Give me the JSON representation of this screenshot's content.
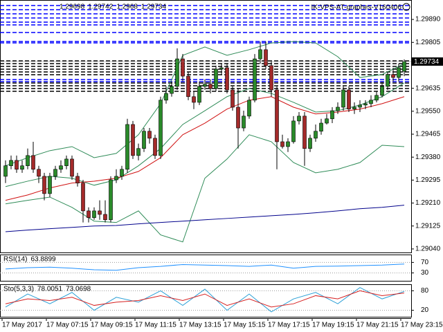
{
  "chart_data": [
    {
      "type": "candlestick",
      "title": "IK-VPS-AT-graphes-V160406",
      "up_color": "#2a8a2a",
      "down_color": "#a32a2a",
      "last_price_color": "#000000",
      "open": [
        1.29309,
        1.29348,
        1.29368,
        1.29335,
        1.29348,
        1.29386,
        1.29335,
        1.29309,
        1.29245,
        1.29309,
        1.29335,
        1.29348,
        1.29373,
        1.29309,
        1.29284,
        1.29181,
        1.29156,
        1.29181,
        1.29168,
        1.29148,
        1.29296,
        1.29309,
        1.29335,
        1.29501,
        1.29386,
        1.29412,
        1.29476,
        1.2945,
        1.29386,
        1.29591,
        1.29616,
        1.29642,
        1.29744,
        1.2968,
        1.29604,
        1.29583,
        1.29642,
        1.2965,
        1.29634,
        1.29706,
        1.29711,
        1.29629,
        1.29565,
        1.29488,
        1.29532,
        1.29591,
        1.29744,
        1.29778,
        1.29719,
        1.29629,
        1.29437,
        1.29419,
        1.29437,
        1.29514,
        1.29532,
        1.29412,
        1.2945,
        1.29476,
        1.29506,
        1.29522,
        1.29552,
        1.29565,
        1.29629,
        1.29558,
        1.29565,
        1.29573,
        1.29578,
        1.29591,
        1.29609,
        1.29642,
        1.29686,
        1.29675,
        1.29698
      ],
      "high": [
        1.29368,
        1.29386,
        1.29386,
        1.29368,
        1.29412,
        1.29437,
        1.29348,
        1.29322,
        1.29322,
        1.29348,
        1.29368,
        1.29386,
        1.29386,
        1.29322,
        1.29296,
        1.29194,
        1.29194,
        1.2922,
        1.2922,
        1.29309,
        1.29335,
        1.29348,
        1.29522,
        1.29514,
        1.2943,
        1.29488,
        1.29488,
        1.29463,
        1.29604,
        1.29642,
        1.2966,
        1.29783,
        1.29762,
        1.29696,
        1.29624,
        1.2966,
        1.29668,
        1.29668,
        1.29719,
        1.29726,
        1.29726,
        1.29642,
        1.29634,
        1.29552,
        1.29604,
        1.29762,
        1.29808,
        1.29808,
        1.29734,
        1.29642,
        1.29463,
        1.2945,
        1.29532,
        1.29547,
        1.29547,
        1.29463,
        1.29501,
        1.29522,
        1.2954,
        1.29565,
        1.29583,
        1.29642,
        1.29642,
        1.29583,
        1.29591,
        1.29591,
        1.29609,
        1.29624,
        1.2966,
        1.29696,
        1.29711,
        1.29726,
        1.29742
      ],
      "low": [
        1.29284,
        1.29335,
        1.29322,
        1.29322,
        1.29335,
        1.29322,
        1.29284,
        1.2922,
        1.29232,
        1.29296,
        1.29322,
        1.29335,
        1.29296,
        1.29271,
        1.29138,
        1.29138,
        1.29148,
        1.29148,
        1.29138,
        1.29138,
        1.29284,
        1.29296,
        1.29322,
        1.29373,
        1.29368,
        1.29399,
        1.2943,
        1.29373,
        1.29373,
        1.29578,
        1.29604,
        1.29629,
        1.2966,
        1.29591,
        1.29558,
        1.29573,
        1.29629,
        1.29616,
        1.29624,
        1.29686,
        1.29616,
        1.29552,
        1.29412,
        1.29476,
        1.29522,
        1.29583,
        1.29726,
        1.29706,
        1.29604,
        1.29335,
        1.29412,
        1.29399,
        1.2943,
        1.29501,
        1.29348,
        1.29399,
        1.29437,
        1.29463,
        1.29501,
        1.29506,
        1.2954,
        1.29552,
        1.29547,
        1.2954,
        1.29547,
        1.29558,
        1.29565,
        1.29583,
        1.29601,
        1.29629,
        1.2966,
        1.2966,
        1.2968
      ],
      "close": [
        1.29348,
        1.29368,
        1.29335,
        1.29348,
        1.29386,
        1.29335,
        1.29309,
        1.29245,
        1.29309,
        1.29335,
        1.29348,
        1.29373,
        1.29309,
        1.29284,
        1.29181,
        1.29156,
        1.29181,
        1.29168,
        1.29148,
        1.29296,
        1.29309,
        1.29335,
        1.29501,
        1.29386,
        1.29412,
        1.29476,
        1.2945,
        1.29386,
        1.29591,
        1.29616,
        1.29642,
        1.29744,
        1.2968,
        1.29604,
        1.29583,
        1.29642,
        1.2965,
        1.29634,
        1.29706,
        1.29711,
        1.29629,
        1.29565,
        1.29488,
        1.29532,
        1.29591,
        1.29744,
        1.29778,
        1.29719,
        1.29629,
        1.29437,
        1.29419,
        1.29437,
        1.29514,
        1.29532,
        1.29412,
        1.2945,
        1.29476,
        1.29506,
        1.29522,
        1.29552,
        1.29565,
        1.29629,
        1.29558,
        1.29565,
        1.29573,
        1.29578,
        1.29591,
        1.29609,
        1.29642,
        1.29686,
        1.29675,
        1.29711,
        1.29734
      ],
      "overlays": [
        {
          "color": "#2e8b57",
          "values": [
            1.29348,
            1.29378,
            1.29404,
            1.29419,
            1.29378,
            1.29394,
            1.29463,
            1.29578,
            1.29757,
            1.29788,
            1.29757,
            1.29778,
            1.29803,
            1.29808,
            1.29803,
            1.29752,
            1.29675,
            1.29686,
            1.29726
          ]
        },
        {
          "color": "#2e8b57",
          "values": [
            1.29271,
            1.29291,
            1.29309,
            1.29302,
            1.29276,
            1.29296,
            1.29348,
            1.29412,
            1.29501,
            1.29552,
            1.29604,
            1.29634,
            1.29616,
            1.29583,
            1.29547,
            1.29552,
            1.29573,
            1.29604,
            1.29655
          ]
        },
        {
          "color": "#2e8b57",
          "values": [
            1.29207,
            1.2922,
            1.29232,
            1.29194,
            1.29143,
            1.29138,
            1.29181,
            1.29092,
            1.29066,
            1.29302,
            1.29373,
            1.29463,
            1.29437,
            1.2936,
            1.29322,
            1.29335,
            1.2936,
            1.29424,
            1.29419
          ]
        },
        {
          "color": "#d01010",
          "values": [
            1.2922,
            1.2924,
            1.29266,
            1.29284,
            1.29291,
            1.29302,
            1.29327,
            1.29378,
            1.29463,
            1.29506,
            1.29558,
            1.29591,
            1.29604,
            1.29565,
            1.2954,
            1.29547,
            1.29558,
            1.29578,
            1.29604
          ]
        },
        {
          "color": "#00008b",
          "values": [
            1.29104,
            1.2911,
            1.29115,
            1.2912,
            1.29125,
            1.29127,
            1.29133,
            1.29138,
            1.29143,
            1.29148,
            1.29153,
            1.29158,
            1.29163,
            1.29168,
            1.29174,
            1.29181,
            1.29189,
            1.29194,
            1.29202
          ]
        }
      ],
      "ylim": [
        1.29027,
        1.29962
      ],
      "yticks": [
        {
          "value": 1.2989,
          "label": "1.29890"
        },
        {
          "value": 1.29805,
          "label": "1.29805"
        },
        {
          "value": 1.29635,
          "label": "1.29635"
        },
        {
          "value": 1.2955,
          "label": "1.29550"
        },
        {
          "value": 1.29465,
          "label": "1.29465"
        },
        {
          "value": 1.2938,
          "label": "1.29380"
        },
        {
          "value": 1.29295,
          "label": "1.29295"
        },
        {
          "value": 1.2921,
          "label": "1.29210"
        },
        {
          "value": 1.29125,
          "label": "1.29125"
        },
        {
          "value": 1.2904,
          "label": "1.29040"
        }
      ],
      "x_labels": [
        "17 May 2017",
        "17 May 07:15",
        "17 May 09:15",
        "17 May 11:15",
        "17 May 13:15",
        "17 May 15:15",
        "17 May 17:15",
        "17 May 19:15",
        "17 May 21:15",
        "17 May 23:15"
      ]
    },
    {
      "type": "line",
      "title": "RSI(14)",
      "series": [
        {
          "color": "#1e90ff",
          "values": [
            45,
            50,
            52,
            48,
            42,
            40,
            50,
            55,
            62,
            60,
            58,
            55,
            60,
            48,
            55,
            56,
            58,
            60,
            63.8899
          ]
        }
      ],
      "ylim": [
        0,
        100
      ],
      "yticks": [
        70,
        30
      ]
    },
    {
      "type": "line",
      "title": "Sto(5,3,3)",
      "series": [
        {
          "color": "#2a9fd6",
          "values": [
            30,
            70,
            40,
            75,
            20,
            60,
            45,
            80,
            35,
            85,
            20,
            70,
            15,
            55,
            75,
            40,
            90,
            55,
            78.0051
          ]
        },
        {
          "color": "#d62020",
          "values": [
            40,
            55,
            50,
            60,
            35,
            45,
            50,
            65,
            50,
            70,
            35,
            55,
            30,
            40,
            65,
            55,
            80,
            65,
            73.0698
          ]
        }
      ],
      "ylim": [
        0,
        100
      ],
      "yticks": [
        80,
        20
      ]
    }
  ]
}
